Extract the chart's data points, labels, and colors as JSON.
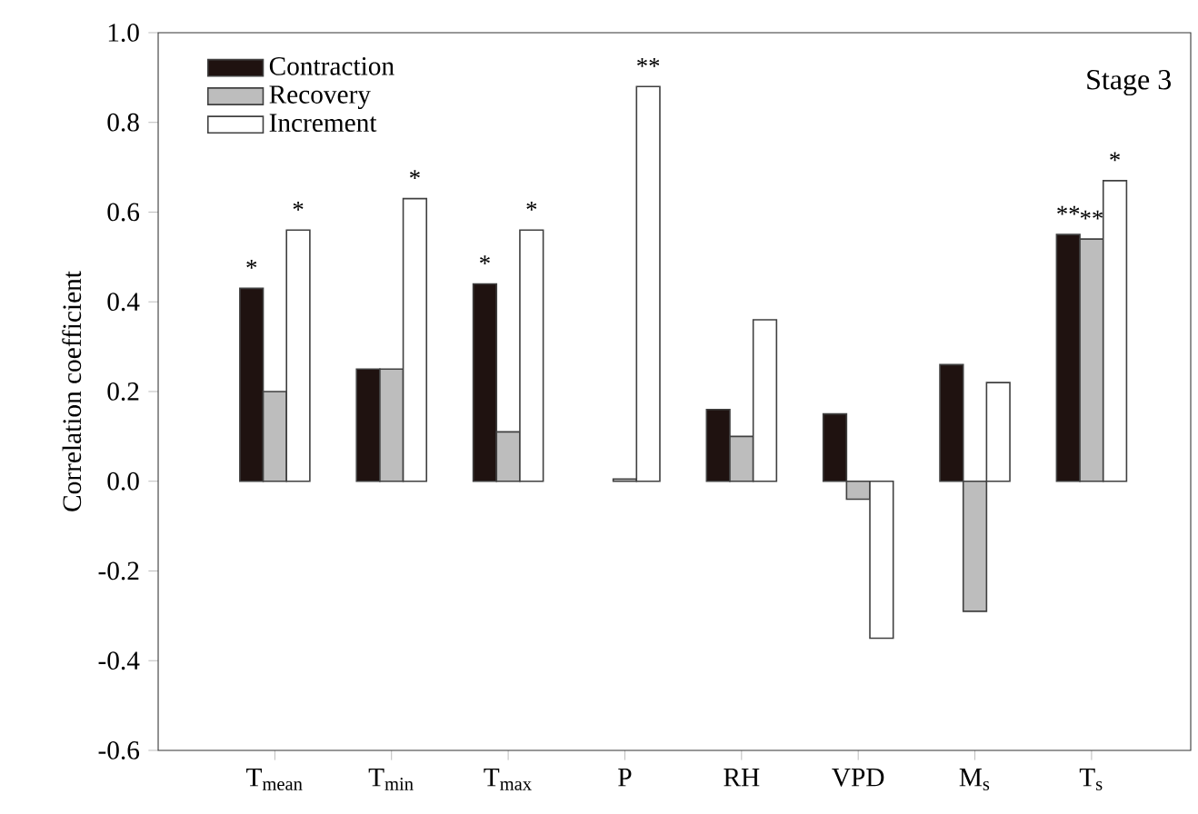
{
  "chart_data": {
    "type": "bar",
    "ylabel": "Correlation coefficient",
    "categories": [
      "T$_{mean}$",
      "T$_{min}$",
      "T$_{max}$",
      "P",
      "RH",
      "VPD",
      "M$_{s}$",
      "T$_{s}$"
    ],
    "series": [
      {
        "name": "Contraction",
        "color": "#1f1210",
        "values": [
          0.43,
          0.25,
          0.44,
          null,
          0.16,
          0.15,
          0.26,
          0.55
        ],
        "value_labels": [
          "*",
          null,
          "*",
          null,
          null,
          null,
          null,
          "**"
        ]
      },
      {
        "name": "Recovery",
        "color": "#bdbdbd",
        "values": [
          0.2,
          0.25,
          0.11,
          0.005,
          0.1,
          -0.04,
          -0.29,
          0.54
        ],
        "value_labels": [
          null,
          null,
          null,
          null,
          null,
          null,
          null,
          "**"
        ]
      },
      {
        "name": "Increment",
        "color": "#ffffff",
        "values": [
          0.56,
          0.63,
          0.56,
          0.88,
          0.36,
          -0.35,
          0.22,
          0.67
        ],
        "value_labels": [
          "*",
          "*",
          "*",
          "**",
          null,
          null,
          null,
          "*"
        ]
      }
    ],
    "ylim": [
      -0.6,
      1.0
    ],
    "yticks": [
      -0.6,
      -0.4,
      -0.2,
      {
        "value": 0,
        "label": "0.0"
      },
      0.2,
      0.4,
      0.6,
      0.8,
      {
        "value": 1,
        "label": "1.0"
      }
    ],
    "legend": "top left",
    "grid": false,
    "annotations": [
      "Stage 3"
    ]
  }
}
